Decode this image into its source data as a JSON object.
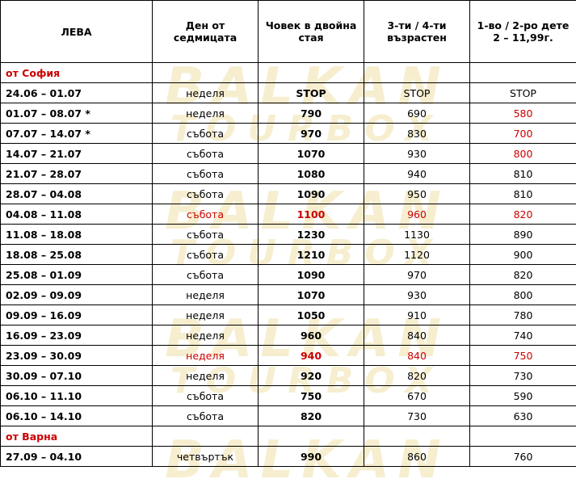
{
  "watermark": {
    "line1": "BALKAN",
    "line2": "TOURBOX"
  },
  "header": {
    "col1": "ЛЕВА",
    "col2": "Ден от седмицата",
    "col3": "Човек в двойна стая",
    "col4": "3-ти / 4-ти възрастен",
    "col5": "1-во / 2-ро дете 2 – 11,99г."
  },
  "sections": [
    {
      "title": "от София",
      "rows": [
        {
          "period": "24.06 – 01.07",
          "day": "неделя",
          "double": "STOP",
          "third": "STOP",
          "child": "STOP",
          "red_day": false,
          "red_double": false,
          "red_third": false,
          "red_child": false
        },
        {
          "period": "01.07 – 08.07 *",
          "day": "неделя",
          "double": "790",
          "third": "690",
          "child": "580",
          "red_day": false,
          "red_double": false,
          "red_third": false,
          "red_child": true
        },
        {
          "period": "07.07 – 14.07 *",
          "day": "събота",
          "double": "970",
          "third": "830",
          "child": "700",
          "red_day": false,
          "red_double": false,
          "red_third": false,
          "red_child": true
        },
        {
          "period": "14.07 – 21.07",
          "day": "събота",
          "double": "1070",
          "third": "930",
          "child": "800",
          "red_day": false,
          "red_double": false,
          "red_third": false,
          "red_child": true
        },
        {
          "period": "21.07 – 28.07",
          "day": "събота",
          "double": "1080",
          "third": "940",
          "child": "810",
          "red_day": false,
          "red_double": false,
          "red_third": false,
          "red_child": false
        },
        {
          "period": "28.07 – 04.08",
          "day": "събота",
          "double": "1090",
          "third": "950",
          "child": "810",
          "red_day": false,
          "red_double": false,
          "red_third": false,
          "red_child": false
        },
        {
          "period": "04.08 – 11.08",
          "day": "събота",
          "double": "1100",
          "third": "960",
          "child": "820",
          "red_day": true,
          "red_double": true,
          "red_third": true,
          "red_child": true
        },
        {
          "period": "11.08 – 18.08",
          "day": "събота",
          "double": "1230",
          "third": "1130",
          "child": "890",
          "red_day": false,
          "red_double": false,
          "red_third": false,
          "red_child": false
        },
        {
          "period": "18.08 – 25.08",
          "day": "събота",
          "double": "1210",
          "third": "1120",
          "child": "900",
          "red_day": false,
          "red_double": false,
          "red_third": false,
          "red_child": false
        },
        {
          "period": "25.08 – 01.09",
          "day": "събота",
          "double": "1090",
          "third": "970",
          "child": "820",
          "red_day": false,
          "red_double": false,
          "red_third": false,
          "red_child": false
        },
        {
          "period": "02.09 – 09.09",
          "day": "неделя",
          "double": "1070",
          "third": "930",
          "child": "800",
          "red_day": false,
          "red_double": false,
          "red_third": false,
          "red_child": false
        },
        {
          "period": "09.09 – 16.09",
          "day": "неделя",
          "double": "1050",
          "third": "910",
          "child": "780",
          "red_day": false,
          "red_double": false,
          "red_third": false,
          "red_child": false
        },
        {
          "period": "16.09 – 23.09",
          "day": "неделя",
          "double": "960",
          "third": "840",
          "child": "740",
          "red_day": false,
          "red_double": false,
          "red_third": false,
          "red_child": false
        },
        {
          "period": "23.09 – 30.09",
          "day": "неделя",
          "double": "940",
          "third": "840",
          "child": "750",
          "red_day": true,
          "red_double": true,
          "red_third": true,
          "red_child": true
        },
        {
          "period": "30.09 – 07.10",
          "day": "неделя",
          "double": "920",
          "third": "820",
          "child": "730",
          "red_day": false,
          "red_double": false,
          "red_third": false,
          "red_child": false
        },
        {
          "period": "06.10 – 11.10",
          "day": "събота",
          "double": "750",
          "third": "670",
          "child": "590",
          "red_day": false,
          "red_double": false,
          "red_third": false,
          "red_child": false
        },
        {
          "period": "06.10 – 14.10",
          "day": "събота",
          "double": "820",
          "third": "730",
          "child": "630",
          "red_day": false,
          "red_double": false,
          "red_third": false,
          "red_child": false
        }
      ]
    },
    {
      "title": "от Варна",
      "rows": [
        {
          "period": "27.09 – 04.10",
          "day": "четвъртък",
          "double": "990",
          "third": "860",
          "child": "760",
          "red_day": false,
          "red_double": false,
          "red_third": false,
          "red_child": false
        }
      ]
    }
  ],
  "colors": {
    "text": "#000000",
    "highlight_red": "#cc0000",
    "watermark": "#f6eecf"
  }
}
